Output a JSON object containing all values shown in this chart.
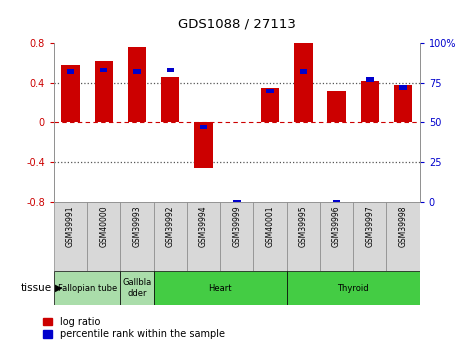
{
  "title": "GDS1088 / 27113",
  "samples": [
    "GSM39991",
    "GSM40000",
    "GSM39993",
    "GSM39992",
    "GSM39994",
    "GSM39999",
    "GSM40001",
    "GSM39995",
    "GSM39996",
    "GSM39997",
    "GSM39998"
  ],
  "log_ratio": [
    0.58,
    0.62,
    0.76,
    0.46,
    -0.46,
    0.0,
    0.35,
    0.82,
    0.32,
    0.42,
    0.38
  ],
  "percentile_rank": [
    82,
    83,
    82,
    83,
    47,
    0,
    70,
    82,
    0,
    77,
    72
  ],
  "bar_color": "#cc0000",
  "pct_color": "#0000cc",
  "ylim": [
    -0.8,
    0.8
  ],
  "y2lim": [
    0,
    100
  ],
  "yticks": [
    -0.8,
    -0.4,
    0.0,
    0.4,
    0.8
  ],
  "ytick_labels": [
    "-0.8",
    "-0.4",
    "0",
    "0.4",
    "0.8"
  ],
  "y2ticks": [
    0,
    25,
    50,
    75,
    100
  ],
  "y2tick_labels": [
    "0",
    "25",
    "50",
    "75",
    "100%"
  ],
  "hlines_dotted": [
    -0.4,
    0.4
  ],
  "hline_zero": 0.0,
  "zero_line_color": "#cc0000",
  "dotted_line_color": "#555555",
  "tissue_groups": [
    {
      "label": "Fallopian tube",
      "start": 0,
      "end": 2,
      "color": "#aaddaa"
    },
    {
      "label": "Gallbla-\ndder",
      "start": 2,
      "end": 3,
      "color": "#aaddaa"
    },
    {
      "label": "Heart",
      "start": 3,
      "end": 7,
      "color": "#44cc44"
    },
    {
      "label": "Thyroid",
      "start": 7,
      "end": 11,
      "color": "#44cc44"
    }
  ],
  "legend_red": "log ratio",
  "legend_blue": "percentile rank within the sample",
  "tissue_label": "tissue",
  "bar_width": 0.55,
  "pct_bar_width": 0.22,
  "bg_color": "#ffffff",
  "axes_bg": "#ffffff",
  "tick_label_color_left": "#cc0000",
  "tick_label_color_right": "#0000cc",
  "cell_color": "#d8d8d8",
  "cell_edge_color": "#888888"
}
